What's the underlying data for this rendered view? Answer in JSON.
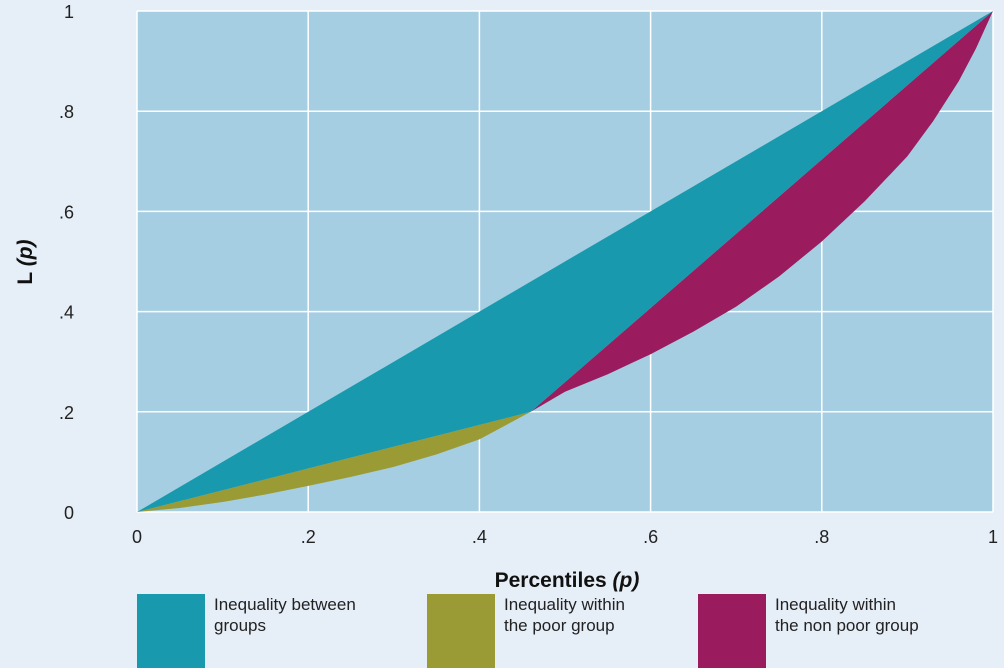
{
  "chart_data": {
    "type": "area",
    "xlabel": "Percentiles ",
    "xlabel_italic": "(p)",
    "ylabel": "L ",
    "ylabel_italic": "(p)",
    "xlim": [
      0,
      1
    ],
    "ylim": [
      0,
      1
    ],
    "x_ticks": [
      {
        "value": 0,
        "label": "0"
      },
      {
        "value": 0.2,
        "label": ".2"
      },
      {
        "value": 0.4,
        "label": ".4"
      },
      {
        "value": 0.6,
        "label": ".6"
      },
      {
        "value": 0.8,
        "label": ".8"
      },
      {
        "value": 1,
        "label": "1"
      }
    ],
    "y_ticks": [
      {
        "value": 0,
        "label": "0"
      },
      {
        "value": 0.2,
        "label": ".2"
      },
      {
        "value": 0.4,
        "label": ".4"
      },
      {
        "value": 0.6,
        "label": ".6"
      },
      {
        "value": 0.8,
        "label": ".8"
      },
      {
        "value": 1,
        "label": "1"
      }
    ],
    "grid": true,
    "legend_position": "bottom",
    "curves": {
      "equality_line": {
        "x": [
          0,
          1
        ],
        "y": [
          0,
          1
        ]
      },
      "between_groups_line": {
        "x": [
          0,
          0.46,
          1
        ],
        "y": [
          0,
          0.2,
          1
        ]
      },
      "lorenz_curve": {
        "x": [
          0,
          0.05,
          0.1,
          0.15,
          0.2,
          0.25,
          0.3,
          0.35,
          0.4,
          0.46,
          0.5,
          0.55,
          0.6,
          0.65,
          0.7,
          0.75,
          0.8,
          0.85,
          0.9,
          0.93,
          0.96,
          0.98,
          1.0
        ],
        "y": [
          0,
          0.008,
          0.02,
          0.035,
          0.052,
          0.07,
          0.09,
          0.115,
          0.145,
          0.2,
          0.24,
          0.275,
          0.315,
          0.36,
          0.41,
          0.47,
          0.54,
          0.62,
          0.71,
          0.78,
          0.86,
          0.925,
          1.0
        ]
      }
    },
    "series": [
      {
        "name": "Inequality between groups",
        "color": "#1899ad",
        "region": "between equality_line and between_groups_line"
      },
      {
        "name": "Inequality within the poor group",
        "color": "#9b9b36",
        "region": "between between_groups_line and lorenz_curve for x in [0, 0.46]"
      },
      {
        "name": "Inequality within the non poor group",
        "color": "#9b1c5e",
        "region": "between between_groups_line and lorenz_curve for x in [0.46, 1]"
      }
    ],
    "colors": {
      "plot_background": "#a6cee2",
      "grid": "#ffffff",
      "page_background": "#e6eef7"
    }
  },
  "legend": [
    {
      "line1": "Inequality between",
      "line2": "groups",
      "color": "#1899ad"
    },
    {
      "line1": "Inequality within",
      "line2": "the poor group",
      "color": "#9b9b36"
    },
    {
      "line1": "Inequality within",
      "line2": "the non poor group",
      "color": "#9b1c5e"
    }
  ]
}
